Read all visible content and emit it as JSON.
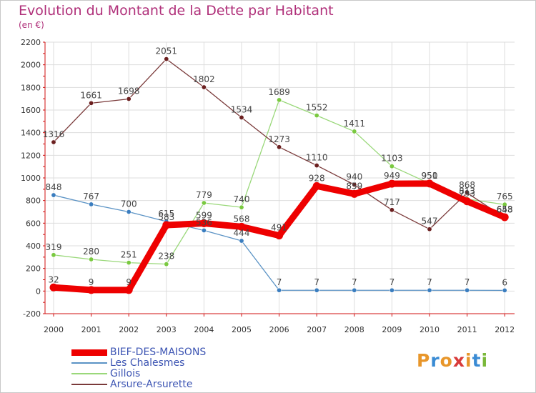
{
  "title": "Evolution du Montant de la Dette par Habitant",
  "subtitle": "(en €)",
  "logo": {
    "text": "Proxiti",
    "colors": [
      "#e8962a",
      "#3a8bd4",
      "#e8962a",
      "#d83a3a",
      "#e8962a",
      "#3a8bd4",
      "#7ab83a"
    ]
  },
  "chart_data": {
    "type": "line",
    "title": "Evolution du Montant de la Dette par Habitant",
    "subtitle": "(en €)",
    "xlabel": "",
    "ylabel": "",
    "categories": [
      "2000",
      "2001",
      "2002",
      "2003",
      "2004",
      "2005",
      "2006",
      "2007",
      "2008",
      "2009",
      "2010",
      "2011",
      "2012"
    ],
    "ylim": [
      -200,
      2200
    ],
    "yticks": [
      -200,
      0,
      200,
      400,
      600,
      800,
      1000,
      1200,
      1400,
      1600,
      1800,
      2000,
      2200
    ],
    "grid": true,
    "legend_position": "bottom",
    "series": [
      {
        "name": "Les Chalesmes",
        "color": "#5b93c5",
        "point_color": "#3a7dbf",
        "values": [
          848,
          767,
          700,
          615,
          536,
          444,
          7,
          7,
          7,
          7,
          7,
          7,
          6
        ],
        "labels": [
          "848",
          "767",
          "700",
          "615",
          "536",
          "444",
          "7",
          "7",
          "7",
          "7",
          "7",
          "7",
          "6"
        ]
      },
      {
        "name": "Gillois",
        "color": "#9ad87a",
        "point_color": "#7ac940",
        "values": [
          319,
          280,
          251,
          238,
          779,
          740,
          1689,
          1552,
          1411,
          1103,
          951,
          813,
          765
        ],
        "labels": [
          "319",
          "280",
          "251",
          "238",
          "779",
          "740",
          "1689",
          "1552",
          "1411",
          "1103",
          "951",
          "813",
          "765"
        ]
      },
      {
        "name": "Arsure-Arsurette",
        "color": "#7a3a3a",
        "point_color": "#6b1f1f",
        "values": [
          1316,
          1661,
          1698,
          2051,
          1802,
          1534,
          1273,
          1110,
          940,
          717,
          547,
          868,
          648
        ],
        "labels": [
          "1316",
          "1661",
          "1698",
          "2051",
          "1802",
          "1534",
          "1273",
          "1110",
          "940",
          "717",
          "547",
          "868",
          "648"
        ]
      },
      {
        "name": "BIEF-DES-MAISONS",
        "color": "#ee0000",
        "point_color": "#ee0000",
        "values": [
          32,
          9,
          9,
          583,
          599,
          568,
          491,
          928,
          859,
          949,
          950,
          793,
          653
        ],
        "labels": [
          "32",
          "9",
          "9",
          "583",
          "599",
          "568",
          "491",
          "928",
          "859",
          "949",
          "950",
          "793",
          "653"
        ]
      }
    ]
  },
  "legend": [
    {
      "name": "BIEF-DES-MAISONS",
      "color": "#ee0000"
    },
    {
      "name": "Les Chalesmes",
      "color": "#5b93c5"
    },
    {
      "name": "Gillois",
      "color": "#9ad87a"
    },
    {
      "name": "Arsure-Arsurette",
      "color": "#7a3a3a"
    }
  ]
}
